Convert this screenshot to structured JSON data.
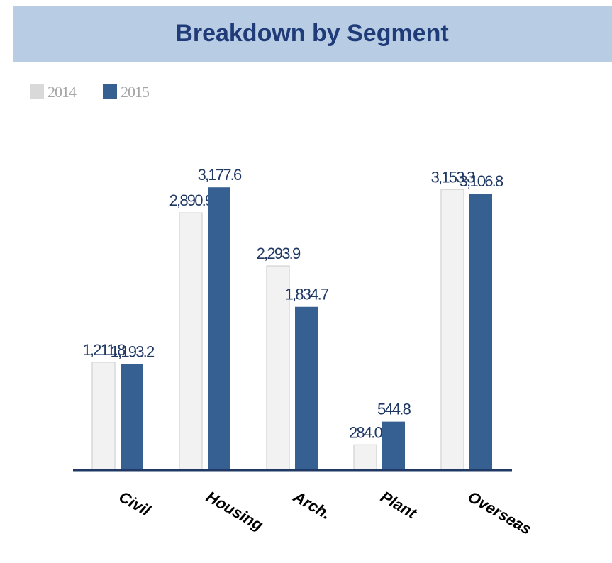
{
  "chart_data": {
    "type": "bar",
    "title": "Breakdown by Segment",
    "categories": [
      "Civil",
      "Housing",
      "Arch.",
      "Plant",
      "Overseas"
    ],
    "series": [
      {
        "name": "2014",
        "color": "#f2f2f2",
        "legend_color": "#d9d9d9",
        "values": [
          1211.8,
          2890.9,
          2293.9,
          284.0,
          3153.3
        ],
        "value_labels": [
          "1,211.8",
          "2,890.9",
          "2,293.9",
          "284.0",
          "3,153.3"
        ]
      },
      {
        "name": "2015",
        "color": "#366092",
        "legend_color": "#366092",
        "values": [
          1193.2,
          3177.6,
          1834.7,
          544.8,
          3106.8
        ],
        "value_labels": [
          "1,193.2",
          "3,177.6",
          "1,834.7",
          "544.8",
          "3,106.8"
        ]
      }
    ],
    "ylim": [
      0,
      4000
    ],
    "legend": "top-left"
  }
}
